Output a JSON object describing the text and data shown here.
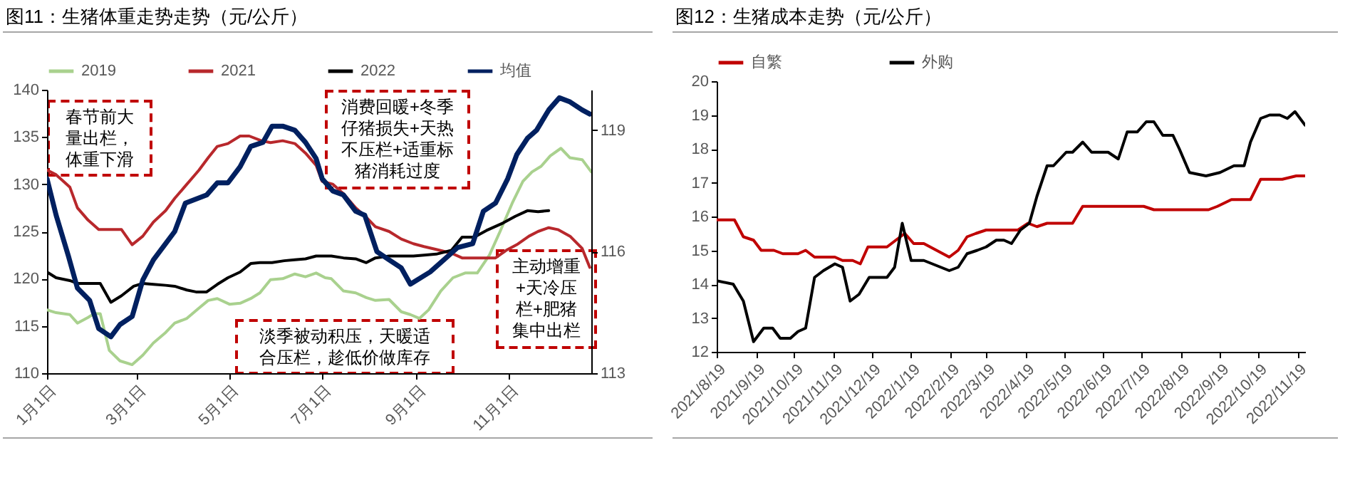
{
  "chart_data": [
    {
      "type": "line",
      "title": "图11：生猪体重走势走势（元/公斤）",
      "legend": "top",
      "xlim": [
        "--01-01",
        "--12-25"
      ],
      "xticks": [
        {
          "value": "--01-01",
          "label": "1月1日"
        },
        {
          "value": "--03-01",
          "label": "3月1日"
        },
        {
          "value": "--05-01",
          "label": "5月1日"
        },
        {
          "value": "--07-01",
          "label": "7月1日"
        },
        {
          "value": "--09-01",
          "label": "9月1日"
        },
        {
          "value": "--11-01",
          "label": "11月1日"
        }
      ],
      "ylim": [
        110,
        140
      ],
      "yticks": [
        110,
        115,
        120,
        125,
        130,
        135,
        140
      ],
      "y2lim": [
        113,
        120
      ],
      "y2ticks": [
        113,
        116,
        119
      ],
      "series": [
        {
          "name": "2019",
          "color": "#a9d18e",
          "x": [
            "--01-01",
            "--01-07",
            "--01-16",
            "--01-21",
            "--01-28",
            "--02-01",
            "--02-05",
            "--02-11",
            "--02-18",
            "--02-26",
            "--03-05",
            "--03-12",
            "--03-20",
            "--03-26",
            "--04-03",
            "--04-11",
            "--04-17",
            "--04-23",
            "--05-01",
            "--05-08",
            "--05-15",
            "--05-21",
            "--05-28",
            "--06-05",
            "--06-13",
            "--06-20",
            "--06-27",
            "--07-03",
            "--07-07",
            "--07-15",
            "--07-23",
            "--07-30",
            "--08-05",
            "--08-14",
            "--08-22",
            "--08-28",
            "--09-03",
            "--09-09",
            "--09-17",
            "--09-25",
            "--10-03",
            "--10-11",
            "--10-19",
            "--10-26",
            "--11-03",
            "--11-10",
            "--11-16",
            "--11-22",
            "--11-28",
            "--12-05",
            "--12-11",
            "--12-19",
            "--12-25"
          ],
          "values": [
            116.7,
            116.4,
            116.2,
            115.3,
            115.9,
            116.3,
            116.3,
            112.4,
            111.3,
            110.9,
            111.9,
            113.2,
            114.3,
            115.3,
            115.8,
            116.9,
            117.7,
            117.9,
            117.3,
            117.4,
            117.9,
            118.5,
            119.9,
            120.0,
            120.5,
            120.2,
            120.6,
            120.1,
            120.0,
            118.7,
            118.5,
            118.0,
            117.7,
            117.8,
            116.5,
            116.2,
            115.8,
            116.7,
            118.7,
            120.1,
            120.6,
            120.6,
            122.5,
            125.0,
            128.0,
            130.3,
            131.3,
            131.9,
            133.0,
            133.8,
            132.8,
            132.6,
            131.3
          ]
        },
        {
          "name": "2021",
          "color": "#b8282c",
          "x": [
            "--01-01",
            "--01-07",
            "--01-16",
            "--01-21",
            "--01-28",
            "--02-04",
            "--02-12",
            "--02-19",
            "--02-26",
            "--03-05",
            "--03-12",
            "--03-20",
            "--03-26",
            "--04-03",
            "--04-11",
            "--04-17",
            "--04-23",
            "--04-30",
            "--05-08",
            "--05-14",
            "--05-22",
            "--05-28",
            "--06-05",
            "--06-13",
            "--06-20",
            "--06-27",
            "--07-01",
            "--07-08",
            "--07-15",
            "--07-23",
            "--07-30",
            "--08-05",
            "--08-14",
            "--08-22",
            "--08-30",
            "--09-06",
            "--09-14",
            "--09-24",
            "--10-01",
            "--10-11",
            "--10-23",
            "--10-30",
            "--11-06",
            "--11-14",
            "--11-20",
            "--11-27",
            "--12-03",
            "--12-11",
            "--12-19",
            "--12-24"
          ],
          "values": [
            131.5,
            131.0,
            129.7,
            127.5,
            126.2,
            125.2,
            125.2,
            125.2,
            123.6,
            124.5,
            126.0,
            127.2,
            128.5,
            130.0,
            131.5,
            132.8,
            134.0,
            134.3,
            135.1,
            135.1,
            134.6,
            134.4,
            134.6,
            134.3,
            133.3,
            132.0,
            130.3,
            130.0,
            129.0,
            127.5,
            126.5,
            125.5,
            125.0,
            124.2,
            123.7,
            123.4,
            123.1,
            122.7,
            122.2,
            122.2,
            122.2,
            123.0,
            123.6,
            124.5,
            125.0,
            125.4,
            125.2,
            124.5,
            123.2,
            121.2
          ]
        },
        {
          "name": "2022",
          "color": "#000000",
          "x": [
            "--01-01",
            "--01-07",
            "--01-16",
            "--01-21",
            "--01-28",
            "--02-05",
            "--02-12",
            "--02-19",
            "--02-27",
            "--03-05",
            "--03-12",
            "--03-20",
            "--03-26",
            "--04-03",
            "--04-09",
            "--04-16",
            "--04-23",
            "--04-30",
            "--05-08",
            "--05-15",
            "--05-21",
            "--05-29",
            "--06-06",
            "--06-13",
            "--06-20",
            "--06-27",
            "--07-03",
            "--07-07",
            "--07-15",
            "--07-23",
            "--07-30",
            "--08-05",
            "--08-14",
            "--08-22",
            "--08-30",
            "--09-06",
            "--09-14",
            "--09-24",
            "--10-01",
            "--10-09",
            "--10-17",
            "--10-28",
            "--11-05",
            "--11-13",
            "--11-20",
            "--11-27"
          ],
          "values": [
            120.7,
            120.1,
            119.8,
            119.5,
            119.5,
            119.5,
            117.5,
            118.2,
            119.2,
            119.5,
            119.4,
            119.3,
            119.2,
            118.8,
            118.6,
            118.6,
            119.4,
            120.1,
            120.7,
            121.6,
            121.7,
            121.7,
            121.9,
            122.0,
            122.1,
            122.4,
            122.4,
            122.4,
            122.2,
            122.1,
            121.7,
            122.2,
            122.4,
            122.4,
            122.4,
            122.5,
            122.6,
            123.0,
            124.4,
            124.4,
            125.1,
            125.9,
            126.6,
            127.2,
            127.1,
            127.2
          ]
        },
        {
          "name": "均值",
          "color": "#002060",
          "axis": "y2",
          "x": [
            "--01-01",
            "--01-07",
            "--01-15",
            "--01-21",
            "--01-29",
            "--02-04",
            "--02-12",
            "--02-18",
            "--02-26",
            "--03-05",
            "--03-12",
            "--03-20",
            "--03-26",
            "--04-02",
            "--04-09",
            "--04-16",
            "--04-23",
            "--04-30",
            "--05-08",
            "--05-15",
            "--05-23",
            "--05-29",
            "--06-05",
            "--06-13",
            "--06-20",
            "--06-27",
            "--07-01",
            "--07-08",
            "--07-15",
            "--07-23",
            "--07-29",
            "--08-06",
            "--08-14",
            "--08-22",
            "--08-28",
            "--09-10",
            "--09-19",
            "--09-28",
            "--10-08",
            "--10-15",
            "--10-23",
            "--10-31",
            "--11-06",
            "--11-13",
            "--11-19",
            "--11-27",
            "--12-04",
            "--12-11",
            "--12-19",
            "--12-24"
          ],
          "values": [
            117.8,
            116.9,
            115.9,
            115.1,
            114.8,
            114.1,
            113.9,
            114.2,
            114.4,
            115.3,
            115.8,
            116.2,
            116.5,
            117.2,
            117.3,
            117.4,
            117.7,
            117.7,
            118.1,
            118.6,
            118.7,
            119.1,
            119.1,
            119.0,
            118.7,
            118.3,
            117.8,
            117.5,
            117.4,
            117.0,
            116.9,
            116.0,
            115.8,
            115.6,
            115.2,
            115.5,
            115.8,
            116.1,
            116.2,
            117.0,
            117.2,
            117.8,
            118.4,
            118.8,
            119.0,
            119.5,
            119.8,
            119.7,
            119.5,
            119.4
          ]
        }
      ],
      "annotations": [
        "春节前大量出栏，体重下滑",
        "淡季被动积压，天暖适合压栏，趁低价做库存",
        "消费回暖+冬季仔猪损失+天热不压栏+适重标猪消耗过度",
        "主动增重+天冷压栏+肥猪集中出栏"
      ]
    },
    {
      "type": "line",
      "title": "图12：生猪成本走势（元/公斤）",
      "legend": "top",
      "xlim": [
        "2021-08-19",
        "2022-11-25"
      ],
      "xticks": [
        {
          "value": "2021-08-19",
          "label": "2021/8/19"
        },
        {
          "value": "2021-09-19",
          "label": "2021/9/19"
        },
        {
          "value": "2021-10-19",
          "label": "2021/10/19"
        },
        {
          "value": "2021-11-19",
          "label": "2021/11/19"
        },
        {
          "value": "2021-12-19",
          "label": "2021/12/19"
        },
        {
          "value": "2022-01-19",
          "label": "2022/1/19"
        },
        {
          "value": "2022-02-19",
          "label": "2022/2/19"
        },
        {
          "value": "2022-03-19",
          "label": "2022/3/19"
        },
        {
          "value": "2022-04-19",
          "label": "2022/4/19"
        },
        {
          "value": "2022-05-19",
          "label": "2022/5/19"
        },
        {
          "value": "2022-06-19",
          "label": "2022/6/19"
        },
        {
          "value": "2022-07-19",
          "label": "2022/7/19"
        },
        {
          "value": "2022-08-19",
          "label": "2022/8/19"
        },
        {
          "value": "2022-09-19",
          "label": "2022/9/19"
        },
        {
          "value": "2022-10-19",
          "label": "2022/10/19"
        },
        {
          "value": "2022-11-19",
          "label": "2022/11/19"
        }
      ],
      "ylim": [
        12,
        20
      ],
      "yticks": [
        12,
        13,
        14,
        15,
        16,
        17,
        18,
        19,
        20
      ],
      "series": [
        {
          "name": "自繁",
          "color": "#c00000",
          "x": [
            "2021-08-19",
            "2021-09-02",
            "2021-09-09",
            "2021-09-17",
            "2021-09-23",
            "2021-10-03",
            "2021-10-10",
            "2021-10-22",
            "2021-10-28",
            "2021-11-04",
            "2021-11-20",
            "2021-11-26",
            "2021-12-04",
            "2021-12-10",
            "2021-12-16",
            "2021-12-31",
            "2022-01-14",
            "2022-01-21",
            "2022-01-29",
            "2022-02-18",
            "2022-02-25",
            "2022-03-04",
            "2022-03-11",
            "2022-03-19",
            "2022-03-27",
            "2022-04-13",
            "2022-04-21",
            "2022-04-28",
            "2022-05-06",
            "2022-05-26",
            "2022-06-03",
            "2022-07-21",
            "2022-07-29",
            "2022-09-10",
            "2022-09-17",
            "2022-09-28",
            "2022-10-13",
            "2022-10-21",
            "2022-11-07",
            "2022-11-18",
            "2022-11-25"
          ],
          "values": [
            15.9,
            15.9,
            15.4,
            15.3,
            15.0,
            15.0,
            14.9,
            14.9,
            15.0,
            14.8,
            14.8,
            14.7,
            14.7,
            14.6,
            15.1,
            15.1,
            15.5,
            15.2,
            15.2,
            14.8,
            15.0,
            15.4,
            15.5,
            15.6,
            15.6,
            15.6,
            15.8,
            15.7,
            15.8,
            15.8,
            16.3,
            16.3,
            16.2,
            16.2,
            16.3,
            16.5,
            16.5,
            17.1,
            17.1,
            17.2,
            17.2
          ]
        },
        {
          "name": "外购",
          "color": "#000000",
          "x": [
            "2021-08-19",
            "2021-09-01",
            "2021-09-09",
            "2021-09-17",
            "2021-09-25",
            "2021-10-02",
            "2021-10-08",
            "2021-10-16",
            "2021-10-22",
            "2021-10-28",
            "2021-11-04",
            "2021-11-11",
            "2021-11-20",
            "2021-11-26",
            "2021-12-02",
            "2021-12-09",
            "2021-12-17",
            "2021-12-31",
            "2022-01-06",
            "2022-01-12",
            "2022-01-19",
            "2022-01-29",
            "2022-02-18",
            "2022-02-25",
            "2022-03-04",
            "2022-03-12",
            "2022-03-19",
            "2022-03-27",
            "2022-04-02",
            "2022-04-08",
            "2022-04-15",
            "2022-04-22",
            "2022-04-28",
            "2022-05-06",
            "2022-05-11",
            "2022-05-21",
            "2022-05-26",
            "2022-06-03",
            "2022-06-10",
            "2022-06-23",
            "2022-07-01",
            "2022-07-08",
            "2022-07-16",
            "2022-07-23",
            "2022-07-29",
            "2022-08-05",
            "2022-08-13",
            "2022-08-18",
            "2022-08-26",
            "2022-09-08",
            "2022-09-19",
            "2022-09-30",
            "2022-10-08",
            "2022-10-13",
            "2022-10-21",
            "2022-10-28",
            "2022-11-05",
            "2022-11-11",
            "2022-11-17",
            "2022-11-25"
          ],
          "values": [
            14.1,
            14.0,
            13.5,
            12.3,
            12.7,
            12.7,
            12.4,
            12.4,
            12.6,
            12.7,
            14.2,
            14.4,
            14.6,
            14.5,
            13.5,
            13.7,
            14.2,
            14.2,
            14.5,
            15.8,
            14.7,
            14.7,
            14.4,
            14.5,
            14.9,
            15.0,
            15.1,
            15.3,
            15.3,
            15.2,
            15.6,
            15.8,
            16.6,
            17.5,
            17.5,
            17.9,
            17.9,
            18.2,
            17.9,
            17.9,
            17.7,
            18.5,
            18.5,
            18.8,
            18.8,
            18.4,
            18.4,
            18.0,
            17.3,
            17.2,
            17.3,
            17.5,
            17.5,
            18.2,
            18.9,
            19.0,
            19.0,
            18.9,
            19.1,
            18.7
          ]
        }
      ]
    }
  ]
}
